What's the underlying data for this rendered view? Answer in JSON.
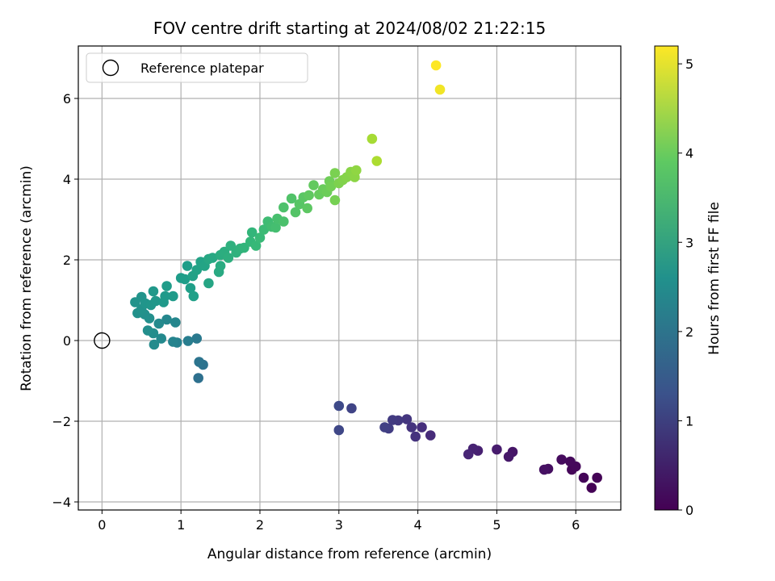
{
  "chart_data": {
    "type": "scatter",
    "title": "FOV centre drift starting at 2024/08/02 21:22:15",
    "xlabel": "Angular distance from reference (arcmin)",
    "ylabel": "Rotation from reference (arcmin)",
    "xlim": [
      -0.3,
      6.57
    ],
    "ylim": [
      -4.2,
      7.3
    ],
    "xticks": [
      0,
      1,
      2,
      3,
      4,
      5,
      6
    ],
    "yticks": [
      -4,
      -2,
      0,
      2,
      4,
      6
    ],
    "grid": true,
    "legend": {
      "placement": "top-left",
      "entries": [
        "Reference platepar"
      ]
    },
    "reference_point": {
      "x": 0,
      "y": 0,
      "label": "Reference platepar"
    },
    "colorbar": {
      "label": "Hours from first FF file",
      "colormap": "viridis",
      "range": [
        0,
        5.2
      ],
      "ticks": [
        0,
        1,
        2,
        3,
        4,
        5
      ]
    },
    "points": [
      [
        6.2,
        -3.65,
        0.02
      ],
      [
        6.27,
        -3.4,
        0.04
      ],
      [
        6.1,
        -3.4,
        0.06
      ],
      [
        5.95,
        -3.2,
        0.08
      ],
      [
        6.0,
        -3.12,
        0.1
      ],
      [
        5.93,
        -3.0,
        0.12
      ],
      [
        5.82,
        -2.95,
        0.15
      ],
      [
        5.65,
        -3.18,
        0.2
      ],
      [
        5.6,
        -3.2,
        0.24
      ],
      [
        5.2,
        -2.76,
        0.3
      ],
      [
        5.15,
        -2.88,
        0.34
      ],
      [
        5.0,
        -2.7,
        0.4
      ],
      [
        4.76,
        -2.73,
        0.46
      ],
      [
        4.7,
        -2.68,
        0.5
      ],
      [
        4.64,
        -2.82,
        0.55
      ],
      [
        4.16,
        -2.35,
        0.65
      ],
      [
        4.05,
        -2.15,
        0.7
      ],
      [
        3.97,
        -2.38,
        0.75
      ],
      [
        3.92,
        -2.15,
        0.78
      ],
      [
        3.86,
        -1.95,
        0.82
      ],
      [
        3.75,
        -1.98,
        0.86
      ],
      [
        3.68,
        -1.97,
        0.9
      ],
      [
        3.63,
        -2.18,
        0.94
      ],
      [
        3.58,
        -2.15,
        0.98
      ],
      [
        3.16,
        -1.68,
        1.05
      ],
      [
        3.0,
        -2.22,
        1.1
      ],
      [
        3.0,
        -1.62,
        1.15
      ],
      [
        1.22,
        -0.93,
        1.9
      ],
      [
        1.28,
        -0.6,
        1.95
      ],
      [
        1.23,
        -0.53,
        2.0
      ],
      [
        1.2,
        0.05,
        2.1
      ],
      [
        1.09,
        -0.01,
        2.2
      ],
      [
        0.95,
        -0.05,
        2.3
      ],
      [
        0.9,
        -0.03,
        2.35
      ],
      [
        0.93,
        0.45,
        2.4
      ],
      [
        0.82,
        0.52,
        2.42
      ],
      [
        0.75,
        0.05,
        2.45
      ],
      [
        0.72,
        0.42,
        2.48
      ],
      [
        0.66,
        -0.1,
        2.5
      ],
      [
        0.65,
        0.18,
        2.53
      ],
      [
        0.58,
        0.25,
        2.56
      ],
      [
        0.6,
        0.55,
        2.58
      ],
      [
        0.54,
        0.65,
        2.6
      ],
      [
        0.45,
        0.68,
        2.62
      ],
      [
        0.5,
        0.78,
        2.64
      ],
      [
        0.42,
        0.95,
        2.66
      ],
      [
        0.5,
        1.08,
        2.68
      ],
      [
        0.55,
        0.92,
        2.7
      ],
      [
        0.62,
        0.88,
        2.72
      ],
      [
        0.68,
        0.98,
        2.74
      ],
      [
        0.65,
        1.22,
        2.76
      ],
      [
        0.78,
        0.95,
        2.78
      ],
      [
        0.8,
        1.1,
        2.8
      ],
      [
        0.9,
        1.1,
        2.82
      ],
      [
        0.82,
        1.35,
        2.84
      ],
      [
        1.0,
        1.55,
        2.86
      ],
      [
        1.05,
        1.52,
        2.88
      ],
      [
        1.08,
        1.85,
        2.9
      ],
      [
        1.12,
        1.3,
        2.92
      ],
      [
        1.16,
        1.1,
        2.94
      ],
      [
        1.15,
        1.6,
        2.96
      ],
      [
        1.2,
        1.75,
        2.98
      ],
      [
        1.25,
        1.95,
        3.0
      ],
      [
        1.3,
        1.85,
        3.03
      ],
      [
        1.35,
        1.42,
        3.06
      ],
      [
        1.35,
        2.02,
        3.09
      ],
      [
        1.4,
        2.05,
        3.12
      ],
      [
        1.48,
        1.7,
        3.15
      ],
      [
        1.5,
        1.85,
        3.18
      ],
      [
        1.5,
        2.12,
        3.21
      ],
      [
        1.55,
        2.2,
        3.24
      ],
      [
        1.6,
        2.05,
        3.27
      ],
      [
        1.63,
        2.35,
        3.3
      ],
      [
        1.7,
        2.18,
        3.33
      ],
      [
        1.75,
        2.28,
        3.36
      ],
      [
        1.8,
        2.3,
        3.39
      ],
      [
        1.9,
        2.68,
        3.42
      ],
      [
        1.88,
        2.45,
        3.45
      ],
      [
        1.95,
        2.35,
        3.48
      ],
      [
        2.0,
        2.55,
        3.51
      ],
      [
        2.05,
        2.75,
        3.54
      ],
      [
        2.1,
        2.95,
        3.57
      ],
      [
        2.15,
        2.82,
        3.6
      ],
      [
        2.2,
        2.8,
        3.63
      ],
      [
        2.22,
        3.02,
        3.66
      ],
      [
        2.3,
        2.95,
        3.69
      ],
      [
        2.3,
        3.3,
        3.72
      ],
      [
        2.4,
        3.52,
        3.75
      ],
      [
        2.45,
        3.18,
        3.78
      ],
      [
        2.5,
        3.38,
        3.81
      ],
      [
        2.55,
        3.55,
        3.84
      ],
      [
        2.6,
        3.28,
        3.87
      ],
      [
        2.62,
        3.6,
        3.9
      ],
      [
        2.68,
        3.85,
        3.93
      ],
      [
        2.75,
        3.62,
        3.96
      ],
      [
        2.8,
        3.75,
        3.99
      ],
      [
        2.85,
        3.68,
        4.02
      ],
      [
        2.88,
        3.95,
        4.05
      ],
      [
        2.9,
        3.82,
        4.08
      ],
      [
        2.95,
        3.48,
        4.11
      ],
      [
        2.95,
        4.15,
        4.14
      ],
      [
        3.0,
        3.9,
        4.17
      ],
      [
        3.05,
        3.98,
        4.2
      ],
      [
        3.1,
        4.05,
        4.23
      ],
      [
        3.15,
        4.18,
        4.26
      ],
      [
        3.2,
        4.05,
        4.29
      ],
      [
        3.22,
        4.22,
        4.32
      ],
      [
        3.42,
        5.0,
        4.5
      ],
      [
        3.48,
        4.45,
        4.55
      ],
      [
        4.28,
        6.22,
        5.1
      ],
      [
        4.23,
        6.82,
        5.2
      ]
    ]
  }
}
